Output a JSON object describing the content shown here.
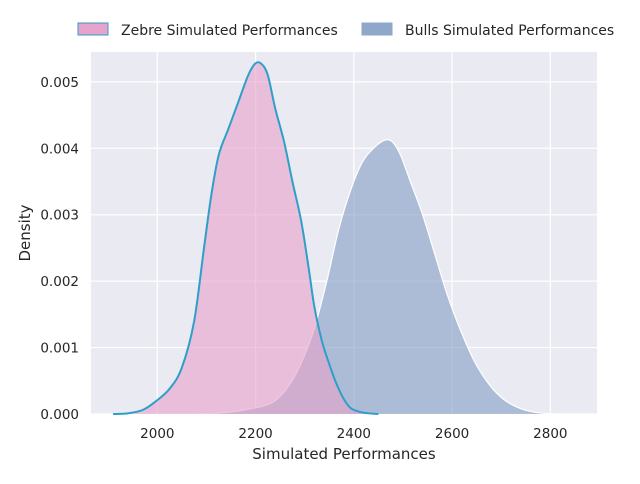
{
  "chart_data": {
    "type": "area",
    "title": "",
    "xlabel": "Simulated Performances",
    "ylabel": "Density",
    "xlim": [
      1865,
      2895
    ],
    "ylim": [
      0,
      0.00545
    ],
    "x_ticks": [
      2000,
      2200,
      2400,
      2600,
      2800
    ],
    "y_ticks": [
      0.0,
      0.001,
      0.002,
      0.003,
      0.004,
      0.005
    ],
    "x_tick_labels": [
      "2000",
      "2200",
      "2400",
      "2600",
      "2800"
    ],
    "y_tick_labels": [
      "0.000",
      "0.001",
      "0.002",
      "0.003",
      "0.004",
      "0.005"
    ],
    "grid": true,
    "legend": {
      "placement": "top-center-outside",
      "columns": 2
    },
    "series": [
      {
        "name": "Zebre Simulated Performances",
        "fill": "#e7a3cc",
        "line": "#2e9fc9",
        "points": [
          [
            1910,
            0.0
          ],
          [
            1940,
            1e-05
          ],
          [
            1970,
            6e-05
          ],
          [
            1995,
            0.00018
          ],
          [
            2025,
            0.00038
          ],
          [
            2050,
            0.0007
          ],
          [
            2075,
            0.0014
          ],
          [
            2095,
            0.0025
          ],
          [
            2110,
            0.0033
          ],
          [
            2125,
            0.0039
          ],
          [
            2145,
            0.0043
          ],
          [
            2165,
            0.0047
          ],
          [
            2185,
            0.0051
          ],
          [
            2200,
            0.00528
          ],
          [
            2212,
            0.00527
          ],
          [
            2225,
            0.0051
          ],
          [
            2240,
            0.0046
          ],
          [
            2258,
            0.0041
          ],
          [
            2275,
            0.0035
          ],
          [
            2293,
            0.0029
          ],
          [
            2308,
            0.0022
          ],
          [
            2320,
            0.0016
          ],
          [
            2335,
            0.0011
          ],
          [
            2350,
            0.00075
          ],
          [
            2365,
            0.00045
          ],
          [
            2380,
            0.00022
          ],
          [
            2395,
            8e-05
          ],
          [
            2420,
            2e-05
          ],
          [
            2450,
            0.0
          ]
        ]
      },
      {
        "name": "Bulls Simulated Performances",
        "fill": "#8fa7c9",
        "line": "#ffffff",
        "points": [
          [
            2060,
            0.0
          ],
          [
            2120,
            1e-05
          ],
          [
            2160,
            4e-05
          ],
          [
            2190,
            8e-05
          ],
          [
            2215,
            0.00012
          ],
          [
            2240,
            0.0002
          ],
          [
            2270,
            0.00045
          ],
          [
            2295,
            0.0008
          ],
          [
            2320,
            0.0013
          ],
          [
            2345,
            0.002
          ],
          [
            2370,
            0.0028
          ],
          [
            2395,
            0.0034
          ],
          [
            2418,
            0.0038
          ],
          [
            2440,
            0.004
          ],
          [
            2462,
            0.00412
          ],
          [
            2478,
            0.0041
          ],
          [
            2495,
            0.0039
          ],
          [
            2515,
            0.0035
          ],
          [
            2540,
            0.003
          ],
          [
            2565,
            0.0024
          ],
          [
            2590,
            0.0018
          ],
          [
            2615,
            0.0013
          ],
          [
            2645,
            0.0008
          ],
          [
            2675,
            0.00045
          ],
          [
            2705,
            0.00022
          ],
          [
            2740,
            8e-05
          ],
          [
            2775,
            2e-05
          ],
          [
            2820,
            0.0
          ],
          [
            2850,
            0.0
          ]
        ]
      }
    ]
  },
  "style": {
    "plot_bg": "#eaeaf2",
    "grid_color": "#ffffff",
    "text_color": "#262626"
  }
}
